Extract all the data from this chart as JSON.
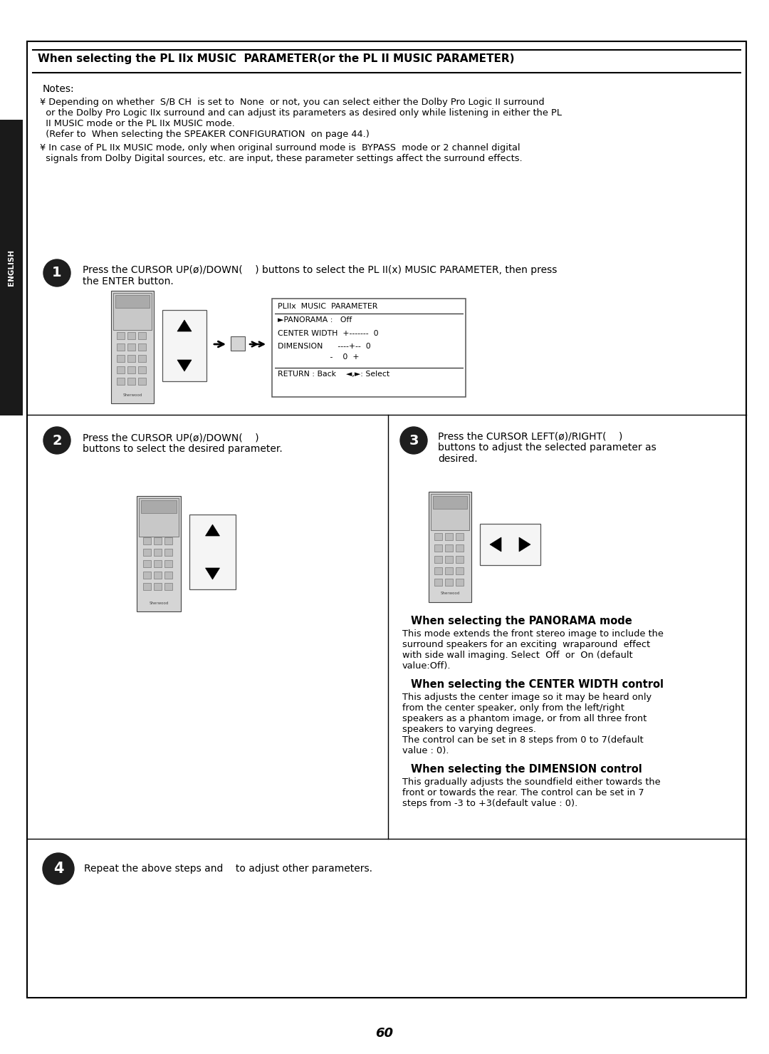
{
  "page_number": "60",
  "background_color": "#ffffff",
  "sidebar_label": "ENGLISH",
  "sidebar_bg": "#222222",
  "sidebar_text_color": "#ffffff",
  "section1_title": "When selecting the PL IIx MUSIC  PARAMETER(or the PL II MUSIC PARAMETER)",
  "notes_header": "Notes:",
  "note1a": "¥ Depending on whether  S/B CH  is set to  None  or not, you can select either the Dolby Pro Logic II surround",
  "note1b": "  or the Dolby Pro Logic IIx surround and can adjust its parameters as desired only while listening in either the PL",
  "note1c": "  II MUSIC mode or the PL IIx MUSIC mode.",
  "note1d": "  (Refer to  When selecting the SPEAKER CONFIGURATION  on page 44.)",
  "note2a": "¥ In case of PL IIx MUSIC mode, only when original surround mode is  BYPASS  mode or 2 channel digital",
  "note2b": "  signals from Dolby Digital sources, etc. are input, these parameter settings affect the surround effects.",
  "s1_line1": "Press the CURSOR UP(ø)/DOWN(    ) buttons to select the PL II(x) MUSIC PARAMETER, then press",
  "s1_line2": "the ENTER button.",
  "s2_line1": "Press the CURSOR UP(ø)/DOWN(    )",
  "s2_line2": "buttons to select the desired parameter.",
  "s3_line1": "Press the CURSOR LEFT(ø)/RIGHT(    )",
  "s3_line2": "buttons to adjust the selected parameter as",
  "s3_line3": "desired.",
  "disp_title": "PLIIx  MUSIC  PARAMETER",
  "disp_panorama": "►PANORAMA :   Off",
  "disp_center": "CENTER WIDTH  +-------  0",
  "disp_dim1": "DIMENSION      ----+--  0",
  "disp_dim2": "                     -    0  +",
  "disp_return": "RETURN : Back    ◄,►: Select",
  "pan_title": "When selecting the PANORAMA mode",
  "pan_body": [
    "This mode extends the front stereo image to include the",
    "surround speakers for an exciting  wraparound  effect",
    "with side wall imaging. Select  Off  or  On (default",
    "value:Off)."
  ],
  "cw_title": "When selecting the CENTER WIDTH control",
  "cw_body": [
    "This adjusts the center image so it may be heard only",
    "from the center speaker, only from the left/right",
    "speakers as a phantom image, or from all three front",
    "speakers to varying degrees.",
    "The control can be set in 8 steps from 0 to 7(default",
    "value : 0)."
  ],
  "dim_title": "When selecting the DIMENSION control",
  "dim_body": [
    "This gradually adjusts the soundfield either towards the",
    "front or towards the rear. The control can be set in 7",
    "steps from -3 to +3(default value : 0)."
  ],
  "s4_text": "Repeat the above steps and    to adjust other parameters."
}
